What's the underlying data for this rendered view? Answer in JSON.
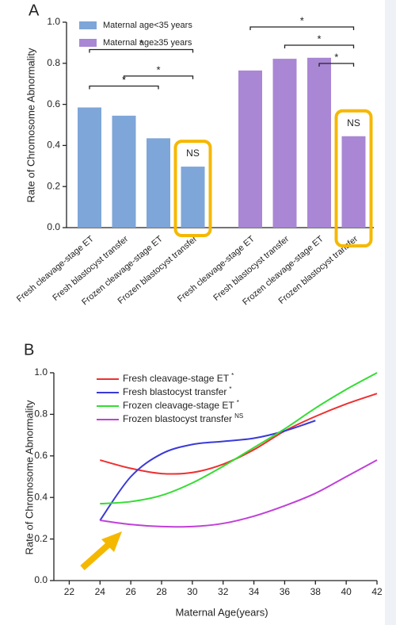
{
  "chart_data": [
    {
      "type": "bar",
      "panel": "A",
      "ylabel": "Rate of Chromosome Abnormality",
      "categories": [
        "Fresh cleavage-stage ET",
        "Fresh blastocyst transfer",
        "Frozen cleavage-stage ET",
        "Frozen blastocyst transfer",
        "Fresh cleavage-stage ET",
        "Fresh blastocyst transfer",
        "Frozen cleavage-stage ET",
        "Frozen blastocyst transfer"
      ],
      "series": [
        {
          "name": "Maternal age<35 years",
          "color": "#7ea6d8",
          "values": [
            0.585,
            0.545,
            0.435,
            0.297,
            null,
            null,
            null,
            null
          ]
        },
        {
          "name": "Maternal age≥35 years",
          "color": "#a987d4",
          "values": [
            null,
            null,
            null,
            null,
            0.765,
            0.822,
            0.827,
            0.445
          ]
        }
      ],
      "ylim": [
        0,
        1
      ],
      "yticks": [
        {
          "value": 0,
          "label": "0.0"
        },
        0.2,
        0.4,
        0.6,
        0.8,
        {
          "value": 1,
          "label": "1.0"
        }
      ],
      "legend": "upper left",
      "brackets": [
        {
          "from": 0,
          "to": 2,
          "label": "*"
        },
        {
          "from": 1,
          "to": 3,
          "label": "*"
        },
        {
          "from": 0,
          "to": 3,
          "label": "*"
        },
        {
          "from": 6,
          "to": 7,
          "label": "*"
        },
        {
          "from": 5,
          "to": 7,
          "label": "*"
        },
        {
          "from": 4,
          "to": 7,
          "label": "*"
        }
      ],
      "annotations": [
        {
          "category": 3,
          "label": "NS"
        },
        {
          "category": 7,
          "label": "NS"
        }
      ],
      "highlighted": [
        3,
        7
      ],
      "highlight_color": "#f5b800"
    },
    {
      "type": "line",
      "panel": "B",
      "xlabel": "Maternal Age(years)",
      "ylabel": "Rate of Chromosome Abnormality",
      "x": [
        24,
        26,
        28,
        30,
        32,
        34,
        36,
        38,
        40,
        42
      ],
      "series": [
        {
          "name": "Fresh  cleavage-stage ET",
          "superscript": "*",
          "color": "#ee3030",
          "values": [
            0.58,
            0.54,
            0.515,
            0.52,
            0.56,
            0.63,
            0.72,
            0.79,
            0.85,
            0.9
          ]
        },
        {
          "name": "Fresh  blastocyst transfer",
          "superscript": "*",
          "color": "#3a3ad8",
          "values": [
            0.29,
            0.5,
            0.61,
            0.655,
            0.67,
            0.685,
            0.72,
            0.77,
            null,
            null
          ]
        },
        {
          "name": "Frozen  cleavage-stage ET",
          "superscript": "*",
          "color": "#33dd33",
          "values": [
            0.37,
            0.38,
            0.41,
            0.47,
            0.55,
            0.64,
            0.73,
            0.83,
            0.92,
            1.0
          ]
        },
        {
          "name": "Frozen  blastocyst transfer",
          "superscript": "NS",
          "color": "#c040d8",
          "values": [
            0.29,
            0.27,
            0.26,
            0.26,
            0.275,
            0.31,
            0.36,
            0.42,
            0.5,
            0.58
          ]
        }
      ],
      "xlim": [
        21,
        42
      ],
      "xticks": [
        22,
        24,
        26,
        28,
        30,
        32,
        34,
        36,
        38,
        40,
        42
      ],
      "ylim": [
        0,
        1
      ],
      "yticks": [
        {
          "value": 0,
          "label": "0.0"
        },
        0.2,
        0.4,
        0.6,
        0.8,
        {
          "value": 1,
          "label": "1.0"
        }
      ],
      "legend": "upper left"
    }
  ]
}
